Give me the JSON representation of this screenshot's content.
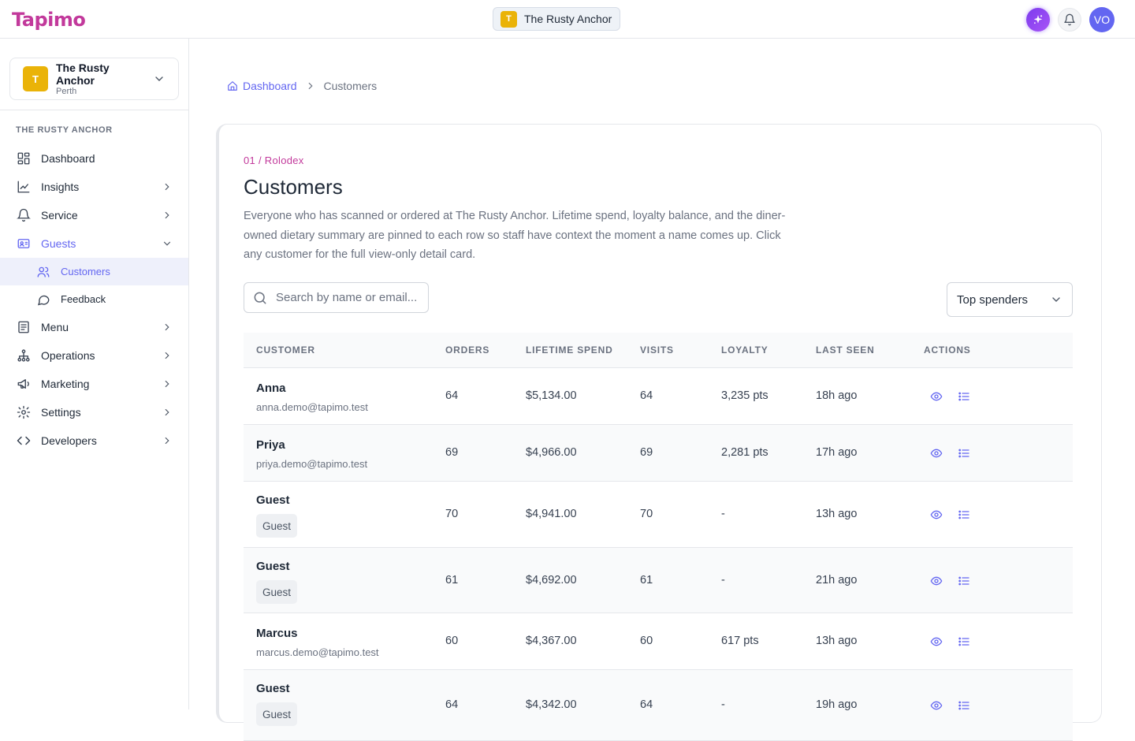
{
  "brand": {
    "logo": "Tapimo"
  },
  "topbar": {
    "venue_badge": "T",
    "venue_name": "The Rusty Anchor",
    "avatar_initials": "VO"
  },
  "sidebar": {
    "venue": {
      "badge": "T",
      "name": "The Rusty Anchor",
      "city": "Perth"
    },
    "section_label": "THE RUSTY ANCHOR",
    "items": {
      "dashboard": "Dashboard",
      "insights": "Insights",
      "service": "Service",
      "guests": "Guests",
      "customers": "Customers",
      "feedback": "Feedback",
      "menu": "Menu",
      "operations": "Operations",
      "marketing": "Marketing",
      "settings": "Settings",
      "developers": "Developers"
    }
  },
  "breadcrumb": {
    "home": "Dashboard",
    "current": "Customers"
  },
  "page": {
    "eyebrow": "01 / Rolodex",
    "title": "Customers",
    "intro": "Everyone who has scanned or ordered at The Rusty Anchor. Lifetime spend, loyalty balance, and the diner-owned dietary summary are pinned to each row so staff have context the moment a name comes up. Click any customer for the full view-only detail card."
  },
  "search": {
    "placeholder": "Search by name or email..."
  },
  "sort": {
    "selected": "Top spenders"
  },
  "table": {
    "columns": {
      "customer": "CUSTOMER",
      "orders": "ORDERS",
      "spend": "LIFETIME SPEND",
      "visits": "VISITS",
      "loyalty": "LOYALTY",
      "seen": "LAST SEEN",
      "actions": "ACTIONS"
    },
    "rows": [
      {
        "name": "Anna",
        "sub": "anna.demo@tapimo.test",
        "orders": "64",
        "spend": "$5,134.00",
        "visits": "64",
        "loyalty": "3,235 pts",
        "seen": "18h ago"
      },
      {
        "name": "Priya",
        "sub": "priya.demo@tapimo.test",
        "orders": "69",
        "spend": "$4,966.00",
        "visits": "69",
        "loyalty": "2,281 pts",
        "seen": "17h ago"
      },
      {
        "name": "Guest",
        "sub": "Guest",
        "orders": "70",
        "spend": "$4,941.00",
        "visits": "70",
        "loyalty": "-",
        "seen": "13h ago"
      },
      {
        "name": "Guest",
        "sub": "Guest",
        "orders": "61",
        "spend": "$4,692.00",
        "visits": "61",
        "loyalty": "-",
        "seen": "21h ago"
      },
      {
        "name": "Marcus",
        "sub": "marcus.demo@tapimo.test",
        "orders": "60",
        "spend": "$4,367.00",
        "visits": "60",
        "loyalty": "617 pts",
        "seen": "13h ago"
      },
      {
        "name": "Guest",
        "sub": "Guest",
        "orders": "64",
        "spend": "$4,342.00",
        "visits": "64",
        "loyalty": "-",
        "seen": "19h ago"
      }
    ]
  },
  "colors": {
    "accent": "#6366f1",
    "brand": "#c2399b",
    "venue_badge": "#eab308"
  },
  "icons": [
    "home-icon",
    "search-icon",
    "chevron-down-icon",
    "eye-icon",
    "list-icon",
    "bell-icon",
    "sparkle-icon"
  ]
}
